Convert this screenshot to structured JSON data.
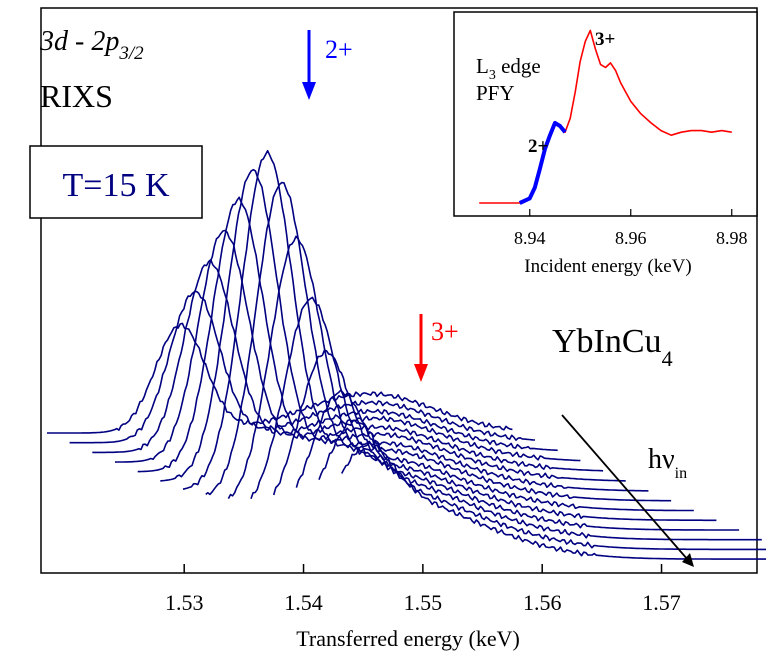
{
  "chart_data": [
    {
      "type": "line",
      "title": "",
      "xlabel": "Transferred energy (keV)",
      "ylabel": "",
      "xlim": [
        1.518,
        1.578
      ],
      "x_ticks": [
        "1.53",
        "1.54",
        "1.55",
        "1.56",
        "1.57"
      ],
      "y_ticks": [],
      "grid": false,
      "text": {
        "transition_a": "3d - 2p",
        "transition_sub": "3/2",
        "method": "RIXS",
        "temperature": "T=15 K",
        "compound_main": "YbInCu",
        "compound_sub": "4",
        "arrow_2_label": "2+",
        "arrow_3_label": "3+",
        "hv_main": "hν",
        "hv_sub": "in"
      },
      "colors": {
        "spectra": "#000080",
        "divalent": "#0000ff",
        "trivalent": "#ff0000"
      },
      "markers": [
        {
          "name": "2+",
          "x": 1.537
        },
        {
          "name": "3+",
          "x": 1.5474
        }
      ],
      "spectra_note_values": {
        "count": 14,
        "baseline_x_start": [
          1.5185,
          1.5204,
          1.5223,
          1.5242,
          1.5261,
          1.528,
          1.5299,
          1.5318,
          1.5337,
          1.5356,
          1.5375,
          1.5394,
          1.5413,
          1.5432
        ],
        "baseline_x_end": [
          1.5575,
          1.5594,
          1.5613,
          1.5632,
          1.5651,
          1.567,
          1.5689,
          1.5708,
          1.5727,
          1.5746,
          1.5765,
          1.5784,
          1.5803,
          1.582
        ],
        "main_peak_x": [
          1.5297,
          1.5309,
          1.5321,
          1.5333,
          1.5345,
          1.5357,
          1.5369,
          1.5381,
          1.5393,
          1.5405,
          1.5417,
          1.5429,
          1.5441,
          1.5453
        ],
        "main_peak_height": [
          0.33,
          0.46,
          0.58,
          0.7,
          0.82,
          0.93,
          1.0,
          0.92,
          0.76,
          0.58,
          0.42,
          0.3,
          0.22,
          0.16
        ],
        "shoulder_height": [
          0.22,
          0.22,
          0.22,
          0.23,
          0.23,
          0.24,
          0.24,
          0.25,
          0.25,
          0.26,
          0.27,
          0.28,
          0.28,
          0.29
        ]
      }
    },
    {
      "type": "line",
      "title": "",
      "xlabel": "Incident energy (keV)",
      "ylabel": "",
      "xlim": [
        8.925,
        8.985
      ],
      "x_ticks": [
        "8.94",
        "8.96",
        "8.98"
      ],
      "text": {
        "edge_main": "L",
        "edge_sub": "3",
        "edge_rest": " edge",
        "method": "PFY",
        "label_2": "2+",
        "label_3": "3+"
      },
      "series": [
        {
          "name": "2+",
          "color": "#0000ff",
          "x": [
            8.938,
            8.94,
            8.941,
            8.942,
            8.943,
            8.944,
            8.945,
            8.946,
            8.947
          ],
          "y": [
            0.0,
            0.03,
            0.1,
            0.22,
            0.35,
            0.44,
            0.52,
            0.5,
            0.46
          ]
        },
        {
          "name": "3+",
          "color": "#ff0000",
          "x": [
            8.93,
            8.934,
            8.937,
            8.938,
            8.94,
            8.941,
            8.942,
            8.943,
            8.944,
            8.945,
            8.946,
            8.947,
            8.948,
            8.949,
            8.95,
            8.951,
            8.952,
            8.953,
            8.954,
            8.955,
            8.956,
            8.957,
            8.958,
            8.959,
            8.96,
            8.962,
            8.964,
            8.966,
            8.968,
            8.97,
            8.972,
            8.974,
            8.976,
            8.978,
            8.98
          ],
          "y": [
            0.0,
            0.0,
            0.0,
            0.0,
            0.03,
            0.1,
            0.22,
            0.35,
            0.44,
            0.52,
            0.5,
            0.46,
            0.55,
            0.72,
            0.92,
            1.05,
            1.12,
            1.0,
            0.9,
            0.88,
            0.91,
            0.86,
            0.78,
            0.72,
            0.66,
            0.58,
            0.52,
            0.47,
            0.44,
            0.46,
            0.47,
            0.47,
            0.46,
            0.47,
            0.46
          ]
        }
      ]
    }
  ]
}
